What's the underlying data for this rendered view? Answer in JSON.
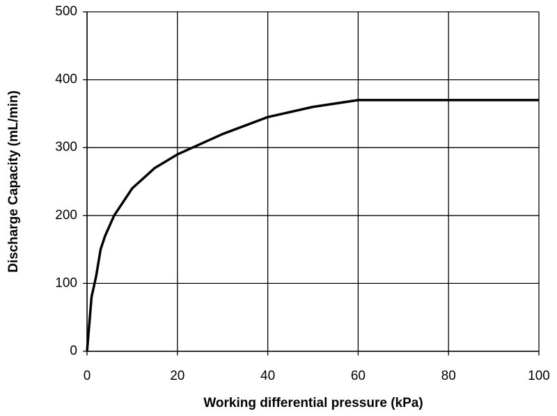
{
  "chart_data": {
    "type": "line",
    "x_label": "Working differential pressure (kPa)",
    "y_label": "Discharge Capacity (mL/min)",
    "x": [
      0,
      0.5,
      1,
      2,
      3,
      4,
      6,
      10,
      15,
      20,
      30,
      40,
      50,
      60,
      100
    ],
    "series": [
      {
        "name": "Discharge capacity",
        "color": "#000000",
        "values": [
          0,
          40,
          80,
          110,
          150,
          170,
          200,
          240,
          270,
          290,
          320,
          345,
          360,
          370,
          370
        ]
      }
    ],
    "xlim": [
      0,
      100
    ],
    "xticks": [
      0,
      20,
      40,
      60,
      80,
      100
    ],
    "ylim": [
      0,
      500
    ],
    "yticks": [
      0,
      100,
      200,
      300,
      400,
      500
    ],
    "grid": true
  }
}
